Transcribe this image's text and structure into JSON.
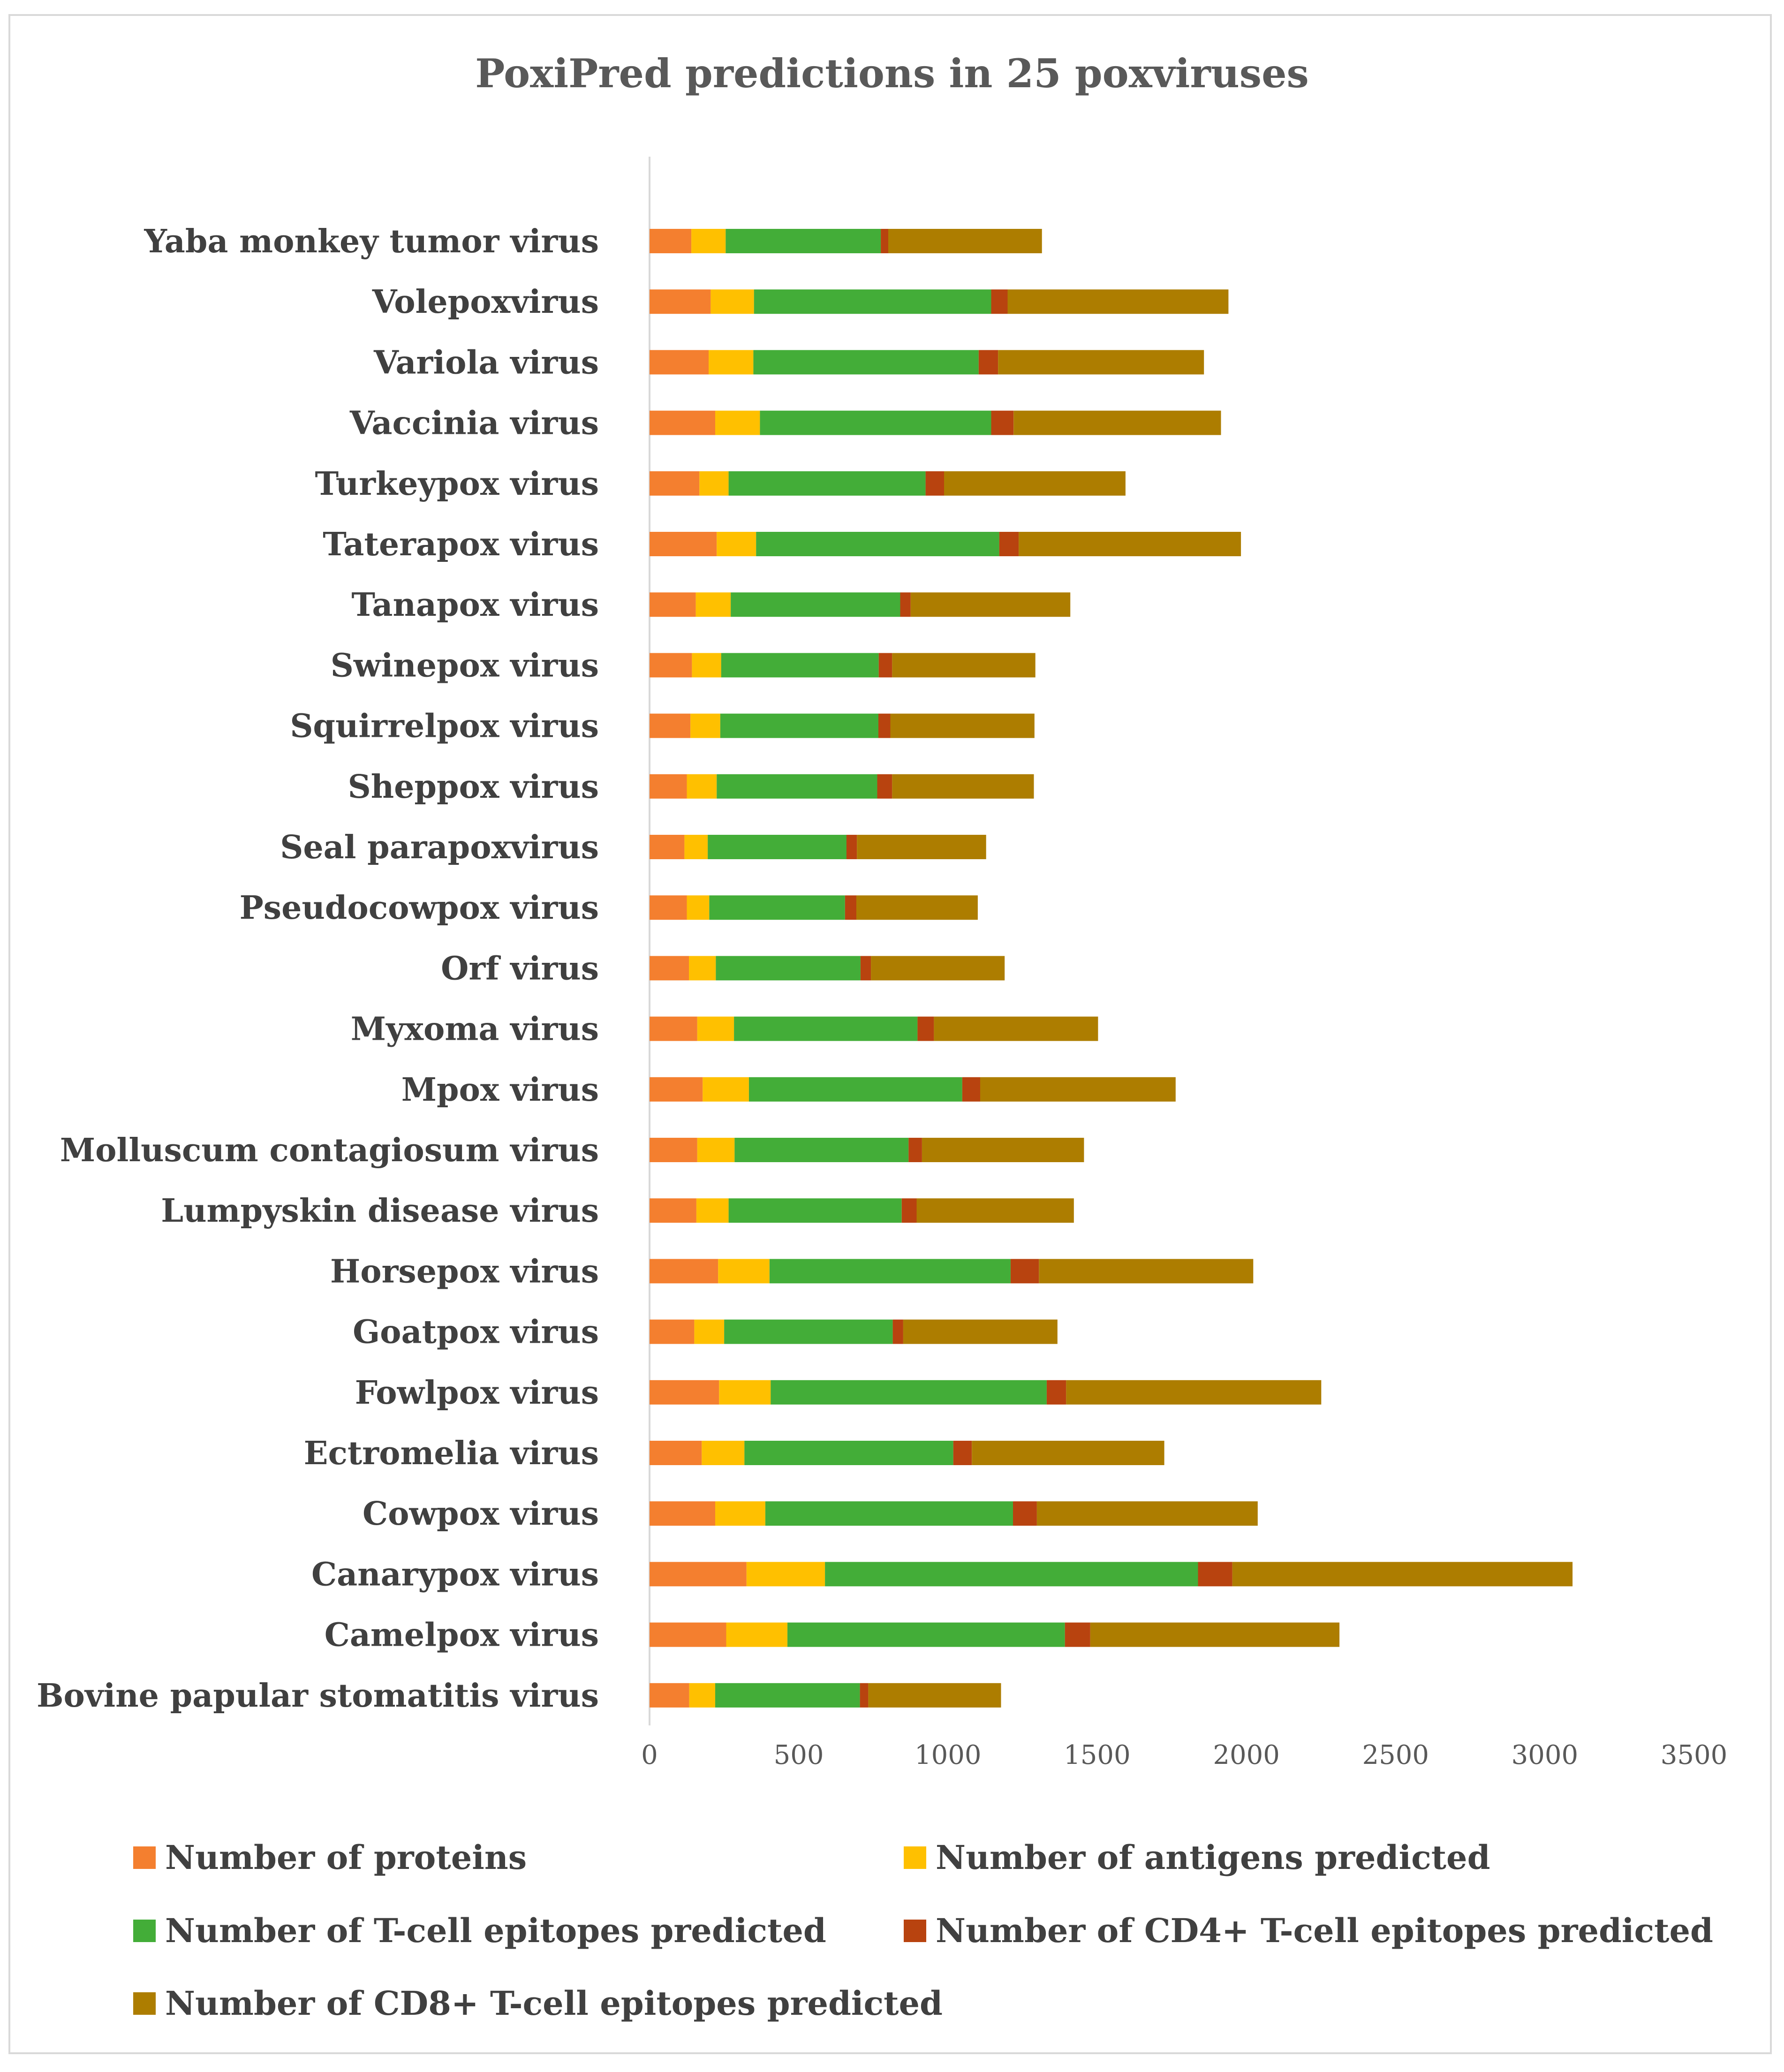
{
  "chart_data": {
    "type": "bar",
    "orientation": "horizontal",
    "stacked": true,
    "title": "PoxiPred predictions in 25 poxviruses",
    "xlabel": "",
    "ylabel": "",
    "xlim": [
      0,
      3500
    ],
    "x_ticks": [
      "0",
      "500",
      "1000",
      "1500",
      "2000",
      "2500",
      "3000",
      "3500"
    ],
    "grid": false,
    "legend_position": "bottom",
    "categories": [
      "Bovine papular stomatitis virus",
      "Camelpox virus",
      "Canarypox virus",
      "Cowpox virus",
      "Ectromelia virus",
      "Fowlpox virus",
      "Goatpox virus",
      "Horsepox virus",
      "Lumpyskin disease virus",
      "Molluscum contagiosum virus",
      "Mpox virus",
      "Myxoma virus",
      "Orf virus",
      "Pseudocowpox virus",
      "Seal parapoxvirus",
      "Sheppox virus",
      "Squirrelpox virus",
      "Swinepox virus",
      "Tanapox virus",
      "Taterapox virus",
      "Turkeypox virus",
      "Vaccinia virus",
      "Variola virus",
      "Volepoxvirus",
      "Yaba monkey tumor virus"
    ],
    "series": [
      {
        "name": "Number of proteins",
        "color": "#f47f2f",
        "values": [
          133,
          257,
          325,
          220,
          175,
          233,
          150,
          230,
          157,
          160,
          178,
          160,
          132,
          125,
          117,
          125,
          137,
          142,
          155,
          225,
          167,
          220,
          198,
          205,
          140
        ]
      },
      {
        "name": "Number of antigens predicted",
        "color": "#ffc000",
        "values": [
          87,
          205,
          263,
          168,
          143,
          173,
          100,
          172,
          108,
          125,
          155,
          123,
          90,
          75,
          78,
          100,
          100,
          98,
          117,
          132,
          98,
          150,
          150,
          145,
          115
        ]
      },
      {
        "name": "Number of T-cell epitopes predicted",
        "color": "#43ad38",
        "values": [
          485,
          930,
          1250,
          830,
          700,
          925,
          565,
          808,
          580,
          583,
          715,
          615,
          485,
          455,
          465,
          538,
          530,
          528,
          568,
          815,
          660,
          775,
          755,
          795,
          520
        ]
      },
      {
        "name": "Number of CD4+ T-cell epitopes predicted",
        "color": "#b8430f",
        "values": [
          28,
          85,
          115,
          80,
          62,
          65,
          35,
          95,
          50,
          45,
          60,
          55,
          35,
          38,
          35,
          50,
          40,
          45,
          35,
          65,
          62,
          75,
          65,
          55,
          25
        ]
      },
      {
        "name": "Number of CD8+ T-cell epitopes predicted",
        "color": "#ad7d00",
        "values": [
          445,
          835,
          1140,
          740,
          645,
          855,
          517,
          718,
          527,
          543,
          655,
          550,
          448,
          407,
          433,
          475,
          483,
          480,
          535,
          745,
          608,
          695,
          690,
          740,
          515
        ]
      }
    ]
  }
}
